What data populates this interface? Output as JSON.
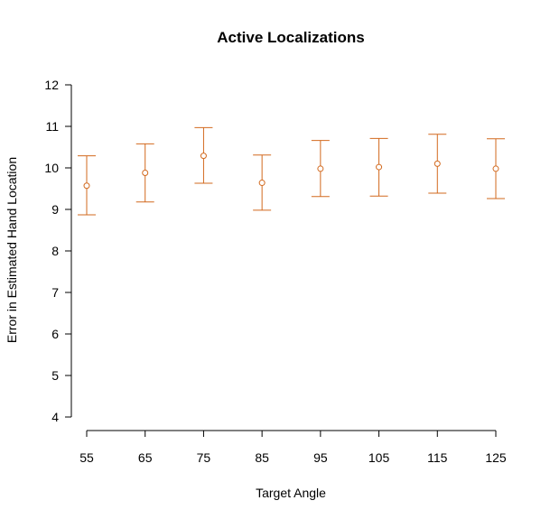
{
  "chart_data": {
    "type": "scatter",
    "title": "Active Localizations",
    "xlabel": "Target Angle",
    "ylabel": "Error in Estimated Hand Location",
    "color": "#D2691E",
    "x": [
      55,
      65,
      75,
      85,
      95,
      105,
      115,
      125
    ],
    "x_tick_labels": [
      "55",
      "65",
      "75",
      "85",
      "95",
      "105",
      "115",
      "125"
    ],
    "y": [
      9.57,
      9.88,
      10.29,
      9.64,
      9.98,
      10.02,
      10.1,
      9.98
    ],
    "y_lower": [
      8.87,
      9.18,
      9.63,
      8.98,
      9.31,
      9.32,
      9.39,
      9.26
    ],
    "y_upper": [
      10.29,
      10.58,
      10.97,
      10.31,
      10.66,
      10.71,
      10.81,
      10.7
    ],
    "y_ticks": [
      4,
      5,
      6,
      7,
      8,
      9,
      10,
      11,
      12
    ],
    "y_tick_labels": [
      "4",
      "5",
      "6",
      "7",
      "8",
      "9",
      "10",
      "11",
      "12"
    ],
    "ylim": [
      4,
      12
    ],
    "xlim": [
      55,
      125
    ],
    "grid": false,
    "legend": "none"
  }
}
